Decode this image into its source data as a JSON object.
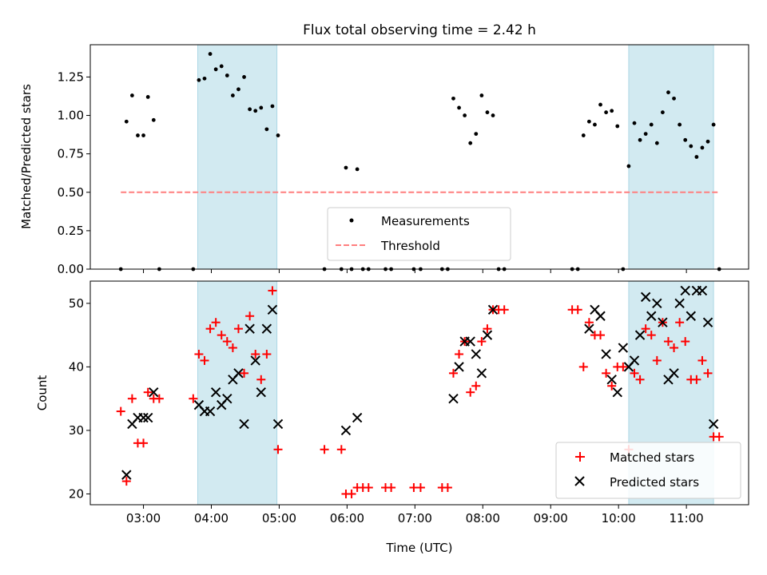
{
  "chart_data": [
    {
      "type": "scatter",
      "title": "Flux total observing time = 2.42 h",
      "ylabel": "Matched/Predicted stars",
      "ylim": [
        0,
        1.46
      ],
      "xlim": [
        "02:13",
        "11:55"
      ],
      "x_ticks": [
        "03:00",
        "04:00",
        "05:00",
        "06:00",
        "07:00",
        "08:00",
        "09:00",
        "10:00",
        "11:00"
      ],
      "y_ticks": [
        "0.00",
        "0.25",
        "0.50",
        "0.75",
        "1.00",
        "1.25"
      ],
      "shaded_spans": [
        [
          "03:48",
          "04:58"
        ],
        [
          "10:09",
          "11:24"
        ]
      ],
      "shade_color": "#add8e6",
      "threshold": {
        "name": "Threshold",
        "value": 0.5,
        "x_range": [
          "02:40",
          "11:29"
        ],
        "color": "#ff7f7f"
      },
      "series": [
        {
          "name": "Measurements",
          "color": "#000000",
          "points": [
            [
              "02:40",
              0.0
            ],
            [
              "02:45",
              0.96
            ],
            [
              "02:50",
              1.13
            ],
            [
              "02:55",
              0.87
            ],
            [
              "03:00",
              0.87
            ],
            [
              "03:04",
              1.12
            ],
            [
              "03:09",
              0.97
            ],
            [
              "03:14",
              0.0
            ],
            [
              "03:44",
              0.0
            ],
            [
              "03:49",
              1.23
            ],
            [
              "03:54",
              1.24
            ],
            [
              "03:59",
              1.4
            ],
            [
              "04:04",
              1.3
            ],
            [
              "04:09",
              1.32
            ],
            [
              "04:14",
              1.26
            ],
            [
              "04:19",
              1.13
            ],
            [
              "04:24",
              1.17
            ],
            [
              "04:29",
              1.25
            ],
            [
              "04:34",
              1.04
            ],
            [
              "04:39",
              1.03
            ],
            [
              "04:44",
              1.05
            ],
            [
              "04:49",
              0.91
            ],
            [
              "04:54",
              1.06
            ],
            [
              "04:59",
              0.87
            ],
            [
              "05:40",
              0.0
            ],
            [
              "05:55",
              0.0
            ],
            [
              "05:59",
              0.66
            ],
            [
              "06:04",
              0.0
            ],
            [
              "06:09",
              0.65
            ],
            [
              "06:14",
              0.0
            ],
            [
              "06:19",
              0.0
            ],
            [
              "06:34",
              0.0
            ],
            [
              "06:39",
              0.0
            ],
            [
              "06:59",
              0.0
            ],
            [
              "07:05",
              0.0
            ],
            [
              "07:24",
              0.0
            ],
            [
              "07:29",
              0.0
            ],
            [
              "07:34",
              1.11
            ],
            [
              "07:39",
              1.05
            ],
            [
              "07:44",
              1.0
            ],
            [
              "07:49",
              0.82
            ],
            [
              "07:54",
              0.88
            ],
            [
              "07:59",
              1.13
            ],
            [
              "08:04",
              1.02
            ],
            [
              "08:09",
              1.0
            ],
            [
              "08:14",
              0.0
            ],
            [
              "08:19",
              0.0
            ],
            [
              "09:19",
              0.0
            ],
            [
              "09:24",
              0.0
            ],
            [
              "09:29",
              0.87
            ],
            [
              "09:34",
              0.96
            ],
            [
              "09:39",
              0.94
            ],
            [
              "09:44",
              1.07
            ],
            [
              "09:49",
              1.02
            ],
            [
              "09:54",
              1.03
            ],
            [
              "09:59",
              0.93
            ],
            [
              "10:04",
              0.0
            ],
            [
              "10:09",
              0.67
            ],
            [
              "10:14",
              0.95
            ],
            [
              "10:19",
              0.84
            ],
            [
              "10:24",
              0.88
            ],
            [
              "10:29",
              0.94
            ],
            [
              "10:34",
              0.82
            ],
            [
              "10:39",
              1.02
            ],
            [
              "10:44",
              1.15
            ],
            [
              "10:49",
              1.11
            ],
            [
              "10:54",
              0.94
            ],
            [
              "10:59",
              0.84
            ],
            [
              "11:04",
              0.8
            ],
            [
              "11:09",
              0.73
            ],
            [
              "11:14",
              0.79
            ],
            [
              "11:19",
              0.83
            ],
            [
              "11:24",
              0.94
            ],
            [
              "11:29",
              0.0
            ]
          ]
        }
      ],
      "legend": {
        "placement": "lower center",
        "entries": [
          "Measurements",
          "Threshold"
        ]
      }
    },
    {
      "type": "scatter",
      "ylabel": "Count",
      "xlabel": "Time (UTC)",
      "ylim": [
        18.3,
        53.5
      ],
      "xlim": [
        "02:13",
        "11:55"
      ],
      "x_ticks": [
        "03:00",
        "04:00",
        "05:00",
        "06:00",
        "07:00",
        "08:00",
        "09:00",
        "10:00",
        "11:00"
      ],
      "y_ticks": [
        "20",
        "30",
        "40",
        "50"
      ],
      "shaded_spans": [
        [
          "03:48",
          "04:58"
        ],
        [
          "10:09",
          "11:24"
        ]
      ],
      "series": [
        {
          "name": "Matched stars",
          "marker": "plus",
          "color": "#ff0000",
          "points": [
            [
              "02:40",
              33
            ],
            [
              "02:45",
              22
            ],
            [
              "02:50",
              35
            ],
            [
              "02:55",
              28
            ],
            [
              "03:00",
              28
            ],
            [
              "03:04",
              36
            ],
            [
              "03:09",
              35
            ],
            [
              "03:14",
              35
            ],
            [
              "03:44",
              35
            ],
            [
              "03:49",
              42
            ],
            [
              "03:54",
              41
            ],
            [
              "03:59",
              46
            ],
            [
              "04:04",
              47
            ],
            [
              "04:09",
              45
            ],
            [
              "04:14",
              44
            ],
            [
              "04:19",
              43
            ],
            [
              "04:24",
              46
            ],
            [
              "04:29",
              39
            ],
            [
              "04:34",
              48
            ],
            [
              "04:39",
              42
            ],
            [
              "04:44",
              38
            ],
            [
              "04:49",
              42
            ],
            [
              "04:54",
              52
            ],
            [
              "04:59",
              27
            ],
            [
              "05:40",
              27
            ],
            [
              "05:55",
              27
            ],
            [
              "05:59",
              20
            ],
            [
              "06:04",
              20
            ],
            [
              "06:09",
              21
            ],
            [
              "06:14",
              21
            ],
            [
              "06:19",
              21
            ],
            [
              "06:34",
              21
            ],
            [
              "06:39",
              21
            ],
            [
              "06:59",
              21
            ],
            [
              "07:05",
              21
            ],
            [
              "07:24",
              21
            ],
            [
              "07:29",
              21
            ],
            [
              "07:34",
              39
            ],
            [
              "07:39",
              42
            ],
            [
              "07:44",
              44
            ],
            [
              "07:49",
              36
            ],
            [
              "07:54",
              37
            ],
            [
              "07:59",
              44
            ],
            [
              "08:04",
              46
            ],
            [
              "08:09",
              49
            ],
            [
              "08:14",
              49
            ],
            [
              "08:19",
              49
            ],
            [
              "09:19",
              49
            ],
            [
              "09:24",
              49
            ],
            [
              "09:29",
              40
            ],
            [
              "09:34",
              47
            ],
            [
              "09:39",
              45
            ],
            [
              "09:44",
              45
            ],
            [
              "09:49",
              39
            ],
            [
              "09:54",
              37
            ],
            [
              "09:59",
              40
            ],
            [
              "10:04",
              40
            ],
            [
              "10:09",
              27
            ],
            [
              "10:14",
              39
            ],
            [
              "10:19",
              38
            ],
            [
              "10:24",
              46
            ],
            [
              "10:29",
              45
            ],
            [
              "10:34",
              41
            ],
            [
              "10:39",
              47
            ],
            [
              "10:44",
              44
            ],
            [
              "10:49",
              43
            ],
            [
              "10:54",
              47
            ],
            [
              "10:59",
              44
            ],
            [
              "11:04",
              38
            ],
            [
              "11:09",
              38
            ],
            [
              "11:14",
              41
            ],
            [
              "11:19",
              39
            ],
            [
              "11:24",
              29
            ],
            [
              "11:29",
              29
            ]
          ]
        },
        {
          "name": "Predicted stars",
          "marker": "x",
          "color": "#000000",
          "points": [
            [
              "02:45",
              23
            ],
            [
              "02:50",
              31
            ],
            [
              "02:55",
              32
            ],
            [
              "03:00",
              32
            ],
            [
              "03:04",
              32
            ],
            [
              "03:09",
              36
            ],
            [
              "03:49",
              34
            ],
            [
              "03:54",
              33
            ],
            [
              "03:59",
              33
            ],
            [
              "04:04",
              36
            ],
            [
              "04:09",
              34
            ],
            [
              "04:14",
              35
            ],
            [
              "04:19",
              38
            ],
            [
              "04:24",
              39
            ],
            [
              "04:29",
              31
            ],
            [
              "04:34",
              46
            ],
            [
              "04:39",
              41
            ],
            [
              "04:44",
              36
            ],
            [
              "04:49",
              46
            ],
            [
              "04:54",
              49
            ],
            [
              "04:59",
              31
            ],
            [
              "05:59",
              30
            ],
            [
              "06:09",
              32
            ],
            [
              "07:34",
              35
            ],
            [
              "07:39",
              40
            ],
            [
              "07:44",
              44
            ],
            [
              "07:49",
              44
            ],
            [
              "07:54",
              42
            ],
            [
              "07:59",
              39
            ],
            [
              "08:04",
              45
            ],
            [
              "08:09",
              49
            ],
            [
              "09:34",
              46
            ],
            [
              "09:39",
              49
            ],
            [
              "09:44",
              48
            ],
            [
              "09:49",
              42
            ],
            [
              "09:54",
              38
            ],
            [
              "09:59",
              36
            ],
            [
              "10:04",
              43
            ],
            [
              "10:09",
              40
            ],
            [
              "10:14",
              41
            ],
            [
              "10:19",
              45
            ],
            [
              "10:24",
              51
            ],
            [
              "10:29",
              48
            ],
            [
              "10:34",
              50
            ],
            [
              "10:39",
              47
            ],
            [
              "10:44",
              38
            ],
            [
              "10:49",
              39
            ],
            [
              "10:54",
              50
            ],
            [
              "10:59",
              52
            ],
            [
              "11:04",
              48
            ],
            [
              "11:09",
              52
            ],
            [
              "11:14",
              52
            ],
            [
              "11:19",
              47
            ],
            [
              "11:24",
              31
            ]
          ]
        }
      ],
      "legend": {
        "placement": "lower right",
        "entries": [
          "Matched stars",
          "Predicted stars"
        ]
      }
    }
  ]
}
